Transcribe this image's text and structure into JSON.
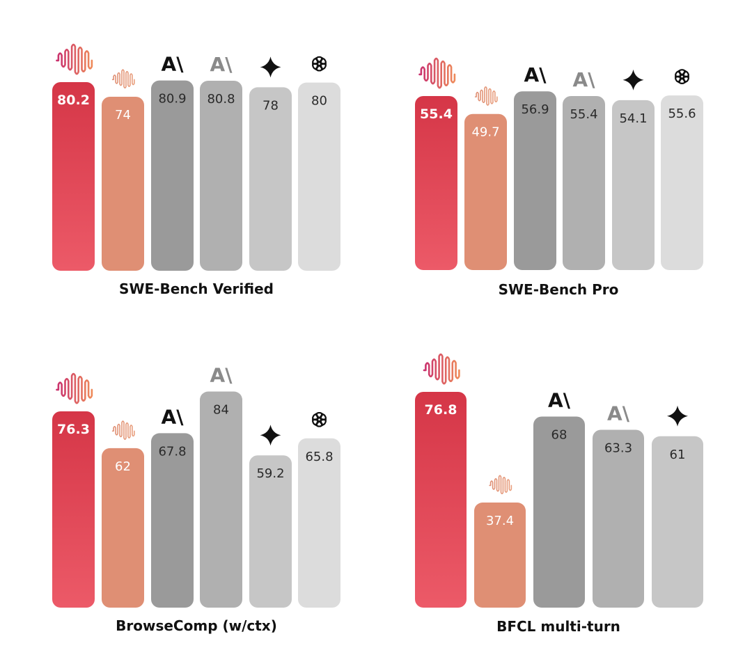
{
  "colors": {
    "model_a_top": "#d53647",
    "model_a_bottom": "#ec5a68",
    "model_b": "#df8f74",
    "model_c": "#9a9a9a",
    "model_d": "#b0b0b0",
    "model_e": "#c6c6c6",
    "model_f": "#dcdcdc"
  },
  "icons": [
    "waveform-icon",
    "waveform-small-icon",
    "anthropic-logo-icon",
    "anthropic-logo-gray-icon",
    "sparkle-star-icon",
    "openai-logo-icon"
  ],
  "chart_data": [
    {
      "type": "bar",
      "title": "SWE-Bench Verified",
      "values": [
        80.2,
        74,
        80.9,
        80.8,
        78,
        80
      ],
      "labels": [
        "80.2",
        "74",
        "80.9",
        "80.8",
        "78",
        "80"
      ],
      "ylim": [
        0,
        84
      ]
    },
    {
      "type": "bar",
      "title": "SWE-Bench Pro",
      "values": [
        55.4,
        49.7,
        56.9,
        55.4,
        54.1,
        55.6
      ],
      "labels": [
        "55.4",
        "49.7",
        "56.9",
        "55.4",
        "54.1",
        "55.6"
      ],
      "ylim": [
        0,
        59.5
      ]
    },
    {
      "type": "bar",
      "title": "BrowseComp (w/ctx)",
      "values": [
        76.3,
        62,
        67.8,
        84,
        59.2,
        65.8
      ],
      "labels": [
        "76.3",
        "62",
        "67.8",
        "84",
        "59.2",
        "65.8"
      ],
      "ylim": [
        0,
        94
      ]
    },
    {
      "type": "bar",
      "title": "BFCL multi-turn",
      "values": [
        76.8,
        37.4,
        68,
        63.3,
        61
      ],
      "labels": [
        "76.8",
        "37.4",
        "68",
        "63.3",
        "61"
      ],
      "ylim": [
        0,
        80
      ]
    }
  ]
}
